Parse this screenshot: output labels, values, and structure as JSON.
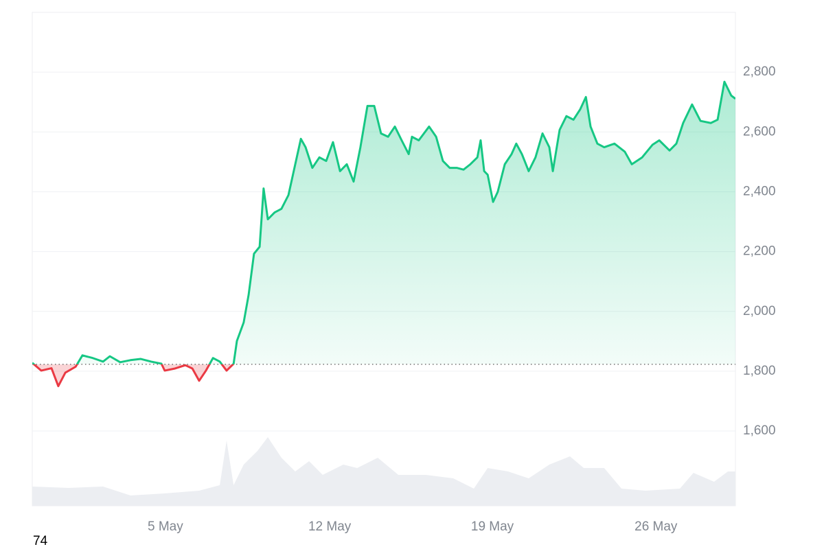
{
  "chart_data": {
    "type": "line",
    "x": [
      0,
      0.38,
      0.82,
      1.11,
      1.41,
      1.85,
      2.14,
      2.58,
      3.02,
      3.31,
      3.75,
      4.19,
      4.63,
      5.07,
      5.51,
      5.65,
      6.09,
      6.53,
      6.83,
      7.12,
      7.41,
      7.71,
      8.0,
      8.29,
      8.59,
      8.73,
      9.02,
      9.23,
      9.46,
      9.7,
      9.87,
      10.05,
      10.34,
      10.63,
      10.93,
      11.22,
      11.46,
      11.66,
      11.95,
      12.25,
      12.54,
      12.83,
      13.13,
      13.42,
      13.71,
      14.0,
      14.3,
      14.59,
      14.88,
      15.18,
      15.47,
      15.76,
      16.06,
      16.2,
      16.49,
      16.93,
      17.23,
      17.52,
      17.81,
      18.11,
      18.4,
      18.69,
      18.99,
      19.13,
      19.28,
      19.43,
      19.66,
      19.86,
      20.16,
      20.45,
      20.65,
      20.89,
      21.18,
      21.47,
      21.77,
      22.06,
      22.21,
      22.5,
      22.79,
      23.09,
      23.38,
      23.62,
      23.82,
      24.11,
      24.4,
      24.84,
      25.28,
      25.58,
      26.02,
      26.46,
      26.75,
      27.19,
      27.48,
      27.77,
      28.15,
      28.51,
      28.95,
      29.24,
      29.53,
      29.82,
      30.0
    ],
    "values": [
      1828,
      1802,
      1810,
      1750,
      1795,
      1815,
      1853,
      1844,
      1832,
      1850,
      1830,
      1837,
      1841,
      1832,
      1825,
      1802,
      1809,
      1820,
      1809,
      1768,
      1802,
      1844,
      1832,
      1802,
      1825,
      1901,
      1963,
      2055,
      2193,
      2216,
      2411,
      2308,
      2331,
      2343,
      2389,
      2492,
      2577,
      2549,
      2480,
      2515,
      2503,
      2566,
      2469,
      2492,
      2434,
      2549,
      2687,
      2687,
      2595,
      2584,
      2618,
      2572,
      2526,
      2584,
      2572,
      2618,
      2584,
      2503,
      2480,
      2480,
      2474,
      2492,
      2515,
      2572,
      2469,
      2457,
      2366,
      2400,
      2492,
      2526,
      2561,
      2526,
      2469,
      2515,
      2595,
      2549,
      2469,
      2607,
      2653,
      2641,
      2676,
      2717,
      2618,
      2561,
      2549,
      2561,
      2534,
      2492,
      2515,
      2557,
      2572,
      2538,
      2561,
      2630,
      2692,
      2637,
      2630,
      2641,
      2768,
      2722,
      2711
    ],
    "baseline": 1823,
    "up_color": "#16c784",
    "down_color": "#ea3943",
    "volume": {
      "x": [
        0,
        1.55,
        3.02,
        4.19,
        5.65,
        7.12,
        8.0,
        8.29,
        8.59,
        9.02,
        9.61,
        10.05,
        10.63,
        11.22,
        11.81,
        12.39,
        13.27,
        13.86,
        14.74,
        15.62,
        16.79,
        17.96,
        18.84,
        19.43,
        20.3,
        21.18,
        22.06,
        22.94,
        23.53,
        24.4,
        25.14,
        26.16,
        27.63,
        28.21,
        29.09,
        29.68,
        30.0
      ],
      "values": [
        28,
        26,
        28,
        15,
        18,
        22,
        30,
        95,
        30,
        60,
        80,
        100,
        70,
        50,
        65,
        45,
        60,
        55,
        70,
        45,
        45,
        40,
        25,
        55,
        50,
        40,
        60,
        72,
        55,
        55,
        25,
        22,
        25,
        48,
        35,
        50,
        50
      ],
      "color": "#eceef2"
    },
    "y2lim": [
      0,
      120
    ],
    "ylim": [
      1350,
      3000
    ],
    "yticks": [
      {
        "value": 1600,
        "label": "1,600"
      },
      {
        "value": 1800,
        "label": "1,800"
      },
      {
        "value": 2000,
        "label": "2,000"
      },
      {
        "value": 2200,
        "label": "2,200"
      },
      {
        "value": 2400,
        "label": "2,400"
      },
      {
        "value": 2600,
        "label": "2,600"
      },
      {
        "value": 2800,
        "label": "2,800"
      }
    ],
    "xlim": [
      0,
      30
    ],
    "xticks": [
      {
        "value": 5.68,
        "label": "5 May"
      },
      {
        "value": 12.69,
        "label": "12 May"
      },
      {
        "value": 19.63,
        "label": "19 May"
      },
      {
        "value": 26.61,
        "label": "26 May"
      }
    ],
    "grid": true,
    "footer_text": "74"
  }
}
